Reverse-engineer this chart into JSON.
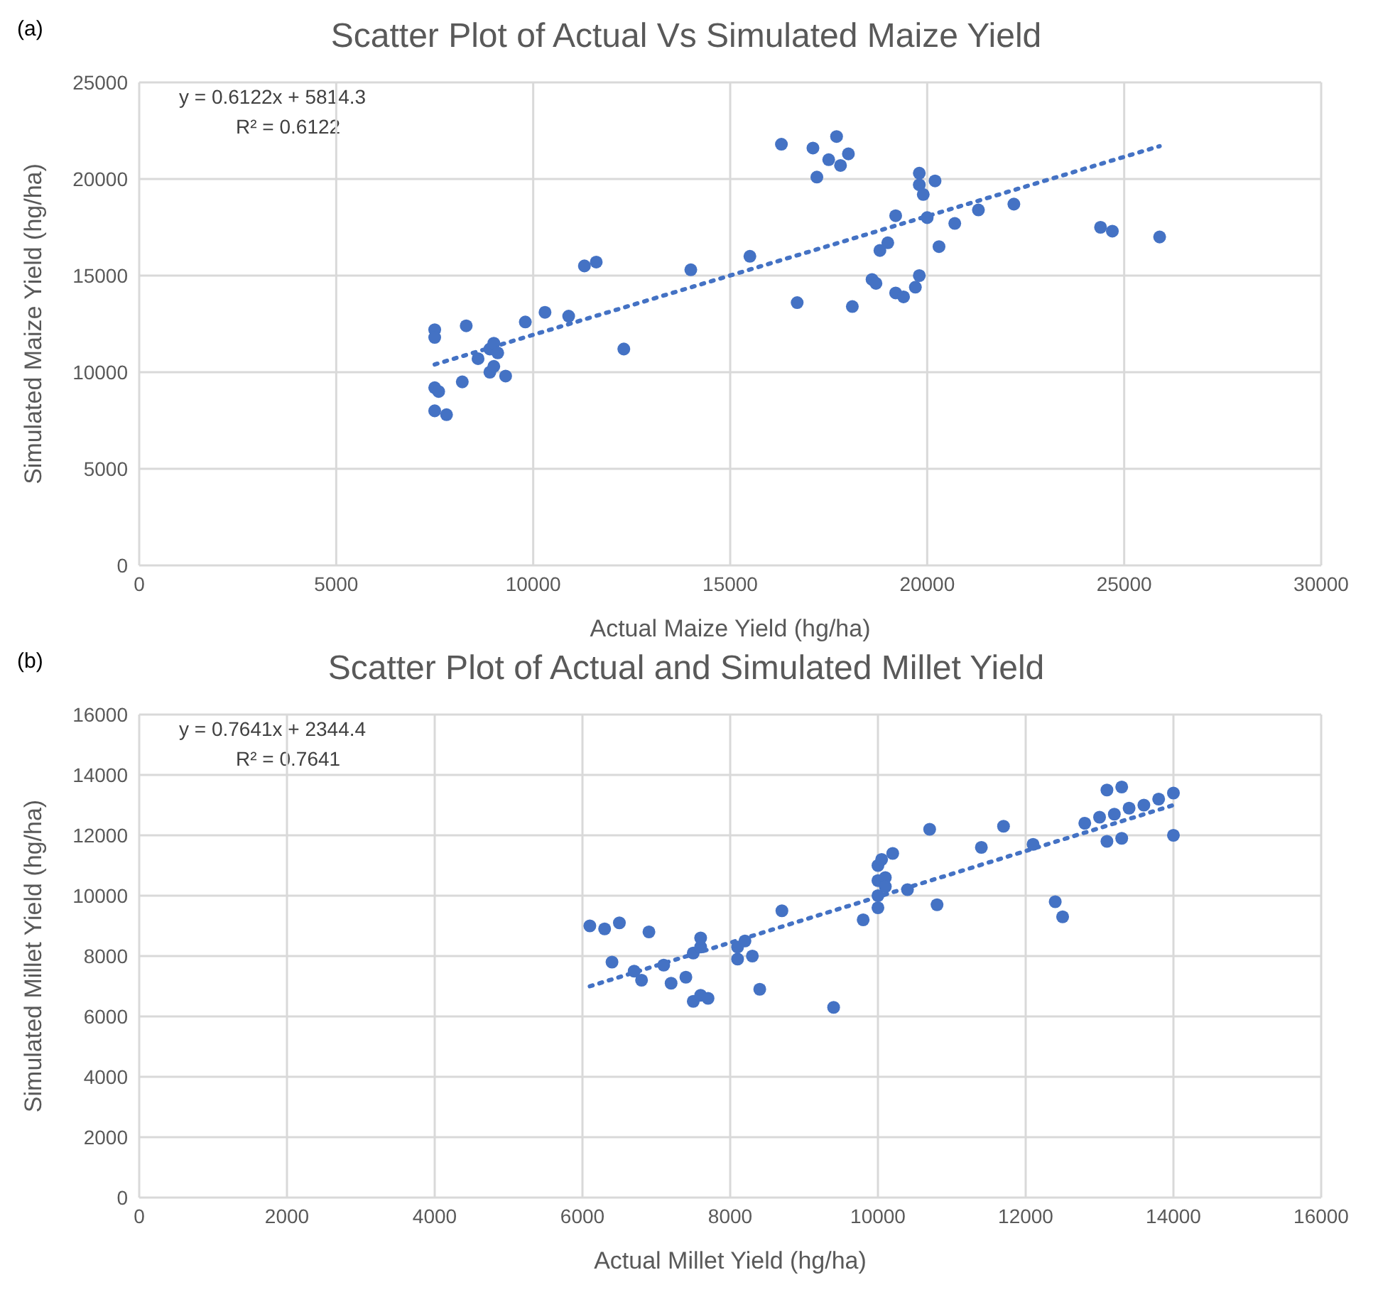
{
  "chart_data": [
    {
      "type": "scatter",
      "title": "Scatter Plot of Actual Vs Simulated Maize Yield",
      "xlabel": "Actual Maize Yield (hg/ha)",
      "ylabel": "Simulated Maize Yield (hg/ha)",
      "annotations": [
        "(a)",
        "y = 0.6122x + 5814.3",
        "R² = 0.6122"
      ],
      "xlim": [
        0,
        30000
      ],
      "xticks": [
        0,
        5000,
        10000,
        15000,
        20000,
        25000,
        30000
      ],
      "ylim": [
        0,
        25000
      ],
      "yticks": [
        0,
        5000,
        10000,
        15000,
        20000,
        25000
      ],
      "grid": true,
      "marker": "circle",
      "series": [
        {
          "color": "#4472c4",
          "x": [
            7500,
            7500,
            7500,
            7600,
            7500,
            7800,
            8200,
            8300,
            8600,
            8900,
            9000,
            8900,
            9000,
            9100,
            9300,
            9800,
            10300,
            10900,
            11300,
            11600,
            12300,
            14000,
            15500,
            16300,
            16700,
            17100,
            17200,
            17500,
            17700,
            17800,
            18000,
            18100,
            18600,
            18700,
            18800,
            19000,
            19200,
            19200,
            19400,
            19700,
            19800,
            19800,
            19800,
            19900,
            20000,
            20200,
            20300,
            20700,
            21300,
            22200,
            24400,
            24700,
            25900
          ],
          "values": [
            12200,
            11800,
            9200,
            9000,
            8000,
            7800,
            9500,
            12400,
            10700,
            11200,
            11500,
            10000,
            10300,
            11000,
            9800,
            12600,
            13100,
            12900,
            15500,
            15700,
            11200,
            15300,
            16000,
            21800,
            13600,
            21600,
            20100,
            21000,
            22200,
            20700,
            21300,
            13400,
            14800,
            14600,
            16300,
            16700,
            18100,
            14100,
            13900,
            14400,
            15000,
            20300,
            19700,
            19200,
            18000,
            19900,
            16500,
            17700,
            18400,
            18700,
            17500,
            17300,
            17000
          ]
        },
        {
          "type": "line",
          "marker": "none",
          "color": "#4472c4",
          "line_style": "dotted",
          "x": [
            7500,
            25900
          ],
          "values": [
            10400,
            21700
          ]
        }
      ]
    },
    {
      "type": "scatter",
      "title": "Scatter Plot of Actual and Simulated Millet Yield",
      "xlabel": "Actual Millet Yield (hg/ha)",
      "ylabel": "Simulated Millet Yield (hg/ha)",
      "annotations": [
        "(b)",
        "y = 0.7641x + 2344.4",
        "R² = 0.7641"
      ],
      "xlim": [
        0,
        16000
      ],
      "xticks": [
        0,
        2000,
        4000,
        6000,
        8000,
        10000,
        12000,
        14000,
        16000
      ],
      "ylim": [
        0,
        16000
      ],
      "yticks": [
        0,
        2000,
        4000,
        6000,
        8000,
        10000,
        12000,
        14000,
        16000
      ],
      "grid": true,
      "marker": "circle",
      "series": [
        {
          "color": "#4472c4",
          "x": [
            6100,
            6300,
            6500,
            6400,
            6700,
            6800,
            6900,
            7100,
            7200,
            7400,
            7500,
            7500,
            7600,
            7600,
            7600,
            7700,
            8100,
            8100,
            8200,
            8300,
            8400,
            8700,
            9400,
            9800,
            10000,
            10000,
            10000,
            10000,
            10050,
            10100,
            10100,
            10200,
            10400,
            10700,
            10800,
            11400,
            11700,
            12100,
            12400,
            12500,
            12800,
            13000,
            13100,
            13100,
            13300,
            13300,
            13200,
            13400,
            13600,
            13800,
            14000,
            14000
          ],
          "values": [
            9000,
            8900,
            9100,
            7800,
            7500,
            7200,
            8800,
            7700,
            7100,
            7300,
            6500,
            8100,
            8300,
            8600,
            6700,
            6600,
            7900,
            8300,
            8500,
            8000,
            6900,
            9500,
            6300,
            9200,
            9600,
            10000,
            10500,
            11000,
            11200,
            10600,
            10300,
            11400,
            10200,
            12200,
            9700,
            11600,
            12300,
            11700,
            9800,
            9300,
            12400,
            12600,
            13500,
            11800,
            13600,
            11900,
            12700,
            12900,
            13000,
            13200,
            13400,
            12000
          ]
        },
        {
          "type": "line",
          "marker": "none",
          "color": "#4472c4",
          "line_style": "dotted",
          "x": [
            6100,
            14000
          ],
          "values": [
            7000,
            13000
          ]
        }
      ]
    }
  ]
}
